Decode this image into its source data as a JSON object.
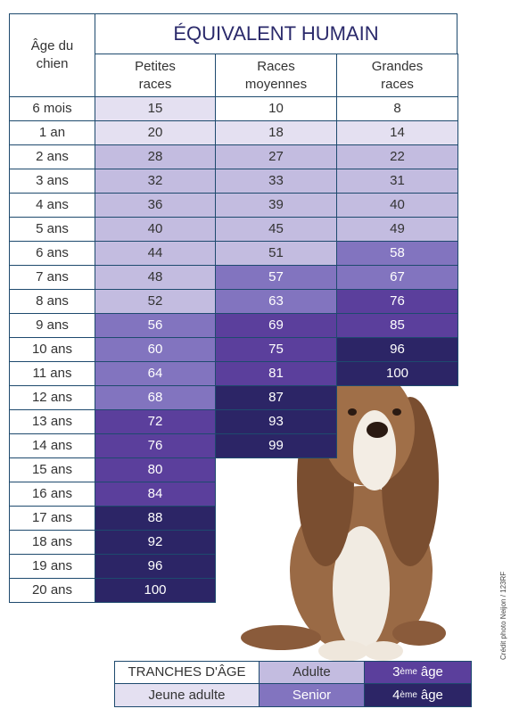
{
  "header": {
    "age_label": "Âge du chien",
    "title": "ÉQUIVALENT HUMAIN",
    "columns": [
      "Petites races",
      "Races moyennes",
      "Grandes races"
    ]
  },
  "table": {
    "rows": [
      {
        "age": "6 mois",
        "values": [
          15,
          10,
          8
        ],
        "colors": [
          "#e4e0f1",
          "#ffffff",
          "#ffffff"
        ]
      },
      {
        "age": "1 an",
        "values": [
          20,
          18,
          14
        ],
        "colors": [
          "#e4e0f1",
          "#e4e0f1",
          "#e4e0f1"
        ]
      },
      {
        "age": "2 ans",
        "values": [
          28,
          27,
          22
        ],
        "colors": [
          "#c3bce0",
          "#c3bce0",
          "#c3bce0"
        ]
      },
      {
        "age": "3 ans",
        "values": [
          32,
          33,
          31
        ],
        "colors": [
          "#c3bce0",
          "#c3bce0",
          "#c3bce0"
        ]
      },
      {
        "age": "4 ans",
        "values": [
          36,
          39,
          40
        ],
        "colors": [
          "#c3bce0",
          "#c3bce0",
          "#c3bce0"
        ]
      },
      {
        "age": "5 ans",
        "values": [
          40,
          45,
          49
        ],
        "colors": [
          "#c3bce0",
          "#c3bce0",
          "#c3bce0"
        ]
      },
      {
        "age": "6 ans",
        "values": [
          44,
          51,
          58
        ],
        "colors": [
          "#c3bce0",
          "#c3bce0",
          "#8274bf"
        ]
      },
      {
        "age": "7 ans",
        "values": [
          48,
          57,
          67
        ],
        "colors": [
          "#c3bce0",
          "#8274bf",
          "#8274bf"
        ]
      },
      {
        "age": "8 ans",
        "values": [
          52,
          63,
          76
        ],
        "colors": [
          "#c3bce0",
          "#8274bf",
          "#5b3f9c"
        ]
      },
      {
        "age": "9 ans",
        "values": [
          56,
          69,
          85
        ],
        "colors": [
          "#8274bf",
          "#5b3f9c",
          "#5b3f9c"
        ]
      },
      {
        "age": "10 ans",
        "values": [
          60,
          75,
          96
        ],
        "colors": [
          "#8274bf",
          "#5b3f9c",
          "#2c2566"
        ]
      },
      {
        "age": "11 ans",
        "values": [
          64,
          81,
          100
        ],
        "colors": [
          "#8274bf",
          "#5b3f9c",
          "#2c2566"
        ]
      },
      {
        "age": "12 ans",
        "values": [
          68,
          87
        ],
        "colors": [
          "#8274bf",
          "#2c2566"
        ]
      },
      {
        "age": "13 ans",
        "values": [
          72,
          93
        ],
        "colors": [
          "#5b3f9c",
          "#2c2566"
        ]
      },
      {
        "age": "14 ans",
        "values": [
          76,
          99
        ],
        "colors": [
          "#5b3f9c",
          "#2c2566"
        ]
      },
      {
        "age": "15 ans",
        "values": [
          80
        ],
        "colors": [
          "#5b3f9c"
        ]
      },
      {
        "age": "16 ans",
        "values": [
          84
        ],
        "colors": [
          "#5b3f9c"
        ]
      },
      {
        "age": "17 ans",
        "values": [
          88
        ],
        "colors": [
          "#2c2566"
        ]
      },
      {
        "age": "18 ans",
        "values": [
          92
        ],
        "colors": [
          "#2c2566"
        ]
      },
      {
        "age": "19 ans",
        "values": [
          96
        ],
        "colors": [
          "#2c2566"
        ]
      },
      {
        "age": "20 ans",
        "values": [
          100
        ],
        "colors": [
          "#2c2566"
        ]
      }
    ]
  },
  "legend": {
    "title": "TRANCHES D'ÂGE",
    "items": [
      {
        "label": "Jeune adulte",
        "color": "#e4e0f1"
      },
      {
        "label": "Adulte",
        "color": "#c3bce0"
      },
      {
        "label": "Senior",
        "color": "#8274bf"
      },
      {
        "prefix": "3",
        "sup": "ème",
        "label": "âge",
        "color": "#5b3f9c"
      },
      {
        "prefix": "4",
        "sup": "ème",
        "label": "âge",
        "color": "#2c2566"
      }
    ]
  },
  "credit": "Crédit photo Neijon / 123RF"
}
